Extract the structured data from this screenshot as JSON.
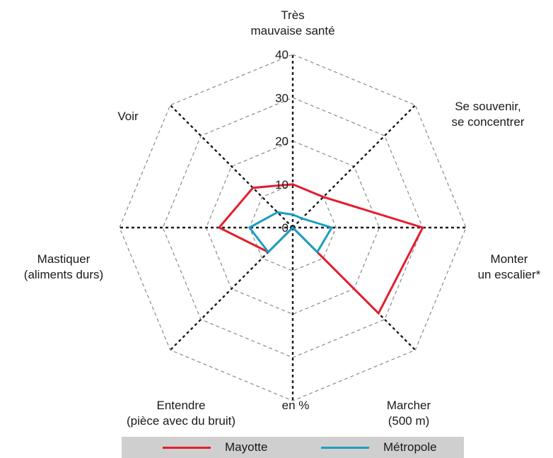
{
  "chart_data": {
    "type": "radar",
    "title": "",
    "unit_label": "en %",
    "axes": [
      "Très\nmauvaise santé",
      "Se souvenir,\nse concentrer",
      "Monter\nun escalier*",
      "Marcher\n(500 m)",
      "en %",
      "Entendre\n(pièce avec du bruit)",
      "Mastiquer\n(aliments durs)",
      "Voir"
    ],
    "radial_ticks": [
      "0",
      "10",
      "20",
      "30",
      "40"
    ],
    "rmax": 40,
    "series": [
      {
        "name": "Mayotte",
        "color": "#e31e2d",
        "values": [
          10,
          10,
          30,
          28,
          0,
          8,
          17,
          13
        ]
      },
      {
        "name": "Métropole",
        "color": "#1a9fc3",
        "values": [
          3,
          3,
          9,
          8,
          0,
          8,
          10,
          5
        ]
      }
    ]
  },
  "legend": {
    "items": [
      {
        "label": "Mayotte",
        "color": "#e31e2d"
      },
      {
        "label": "Métropole",
        "color": "#1a9fc3"
      }
    ]
  }
}
